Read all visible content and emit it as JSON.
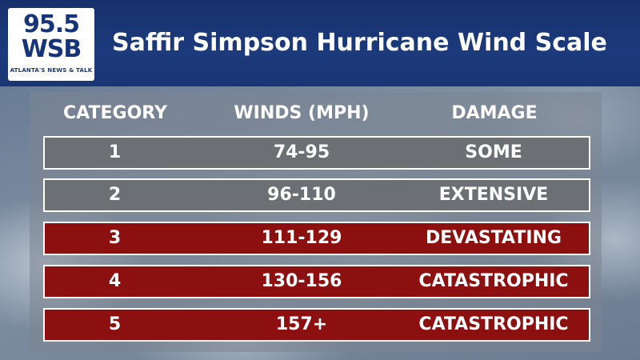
{
  "logo": {
    "frequency": "95.5",
    "callsign": "WSB",
    "tagline": "ATLANTA'S NEWS & TALK"
  },
  "title": "Saffir Simpson Hurricane Wind Scale",
  "headers": {
    "category": "CATEGORY",
    "winds": "WINDS (MPH)",
    "damage": "DAMAGE"
  },
  "rows": [
    {
      "category": "1",
      "winds": "74-95",
      "damage": "SOME",
      "color": "#6c6f73"
    },
    {
      "category": "2",
      "winds": "96-110",
      "damage": "EXTENSIVE",
      "color": "#6c6f73"
    },
    {
      "category": "3",
      "winds": "111-129",
      "damage": "DEVASTATING",
      "color": "#8d1010"
    },
    {
      "category": "4",
      "winds": "130-156",
      "damage": "CATASTROPHIC",
      "color": "#8d1010"
    },
    {
      "category": "5",
      "winds": "157+",
      "damage": "CATASTROPHIC",
      "color": "#8d1010"
    }
  ]
}
